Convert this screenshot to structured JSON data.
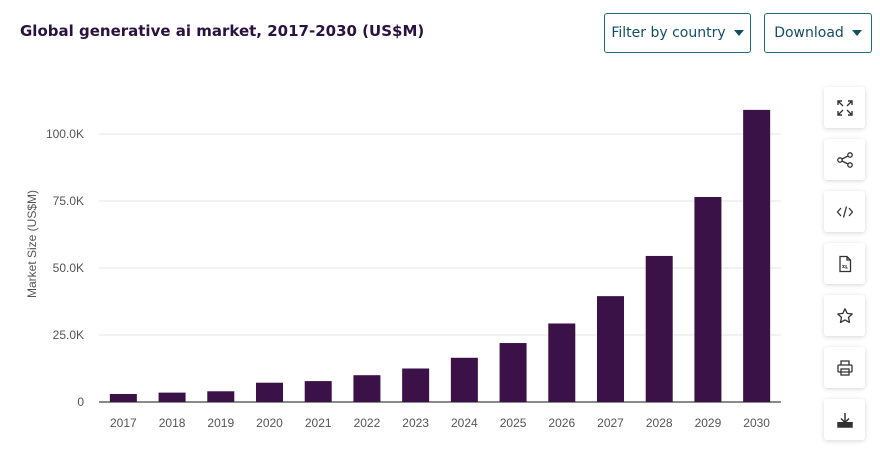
{
  "header": {
    "title": "Global generative ai market, 2017-2030 (US$M)",
    "filter_label": "Filter by country",
    "download_label": "Download"
  },
  "sidebar_tools": [
    {
      "icon": "expand-icon"
    },
    {
      "icon": "share-icon"
    },
    {
      "icon": "embed-code-icon"
    },
    {
      "icon": "xls-file-icon"
    },
    {
      "icon": "star-icon"
    },
    {
      "icon": "print-icon"
    },
    {
      "icon": "download-icon"
    }
  ],
  "colors": {
    "bar": "#3a1248",
    "accent": "#1b6d82",
    "title": "#2a1140"
  },
  "chart_data": {
    "type": "bar",
    "title": "Global generative ai market, 2017-2030 (US$M)",
    "xlabel": "",
    "ylabel": "Market Size (US$M)",
    "categories": [
      "2017",
      "2018",
      "2019",
      "2020",
      "2021",
      "2022",
      "2023",
      "2024",
      "2025",
      "2026",
      "2027",
      "2028",
      "2029",
      "2030"
    ],
    "values": [
      3000,
      3500,
      4000,
      7200,
      7800,
      10000,
      12500,
      16500,
      22000,
      29300,
      39500,
      54500,
      76500,
      109000
    ],
    "ylim": [
      0,
      110000
    ],
    "yticks": [
      0,
      25000,
      50000,
      75000,
      100000
    ],
    "ytick_labels": [
      "0",
      "25.0K",
      "50.0K",
      "75.0K",
      "100.0K"
    ],
    "grid": true,
    "legend": "none"
  }
}
